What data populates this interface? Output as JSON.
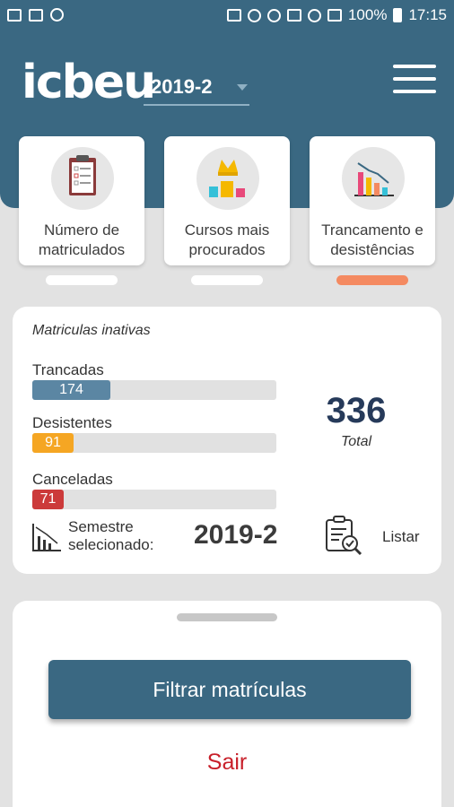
{
  "status_bar": {
    "battery": "100%",
    "time": "17:15"
  },
  "header": {
    "logo": "icbeu",
    "semester_selected": "2019-2"
  },
  "categories": [
    {
      "label_line1": "Número de",
      "label_line2": "matriculados",
      "icon": "clipboard-icon",
      "active": false
    },
    {
      "label_line1": "Cursos mais",
      "label_line2": "procurados",
      "icon": "crown-chart-icon",
      "active": false
    },
    {
      "label_line1": "Trancamento e",
      "label_line2": "desistências",
      "icon": "declining-chart-icon",
      "active": true
    }
  ],
  "stats": {
    "title": "Matriculas inativas",
    "items": [
      {
        "label": "Trancadas",
        "value": "174",
        "fraction": 0.32,
        "color": "#5b86a3"
      },
      {
        "label": "Desistentes",
        "value": "91",
        "fraction": 0.17,
        "color": "#f5a623"
      },
      {
        "label": "Canceladas",
        "value": "71",
        "fraction": 0.13,
        "color": "#cc3a3a"
      }
    ],
    "total_value": "336",
    "total_label": "Total",
    "semester_label_line1": "Semestre",
    "semester_label_line2": "selecionado:",
    "semester_value": "2019-2",
    "list_label": "Listar"
  },
  "sheet": {
    "filter_button": "Filtrar matrículas",
    "logout": "Sair"
  },
  "colors": {
    "primary": "#3a6882",
    "accent": "#f48a61",
    "danger": "#c8202a"
  }
}
